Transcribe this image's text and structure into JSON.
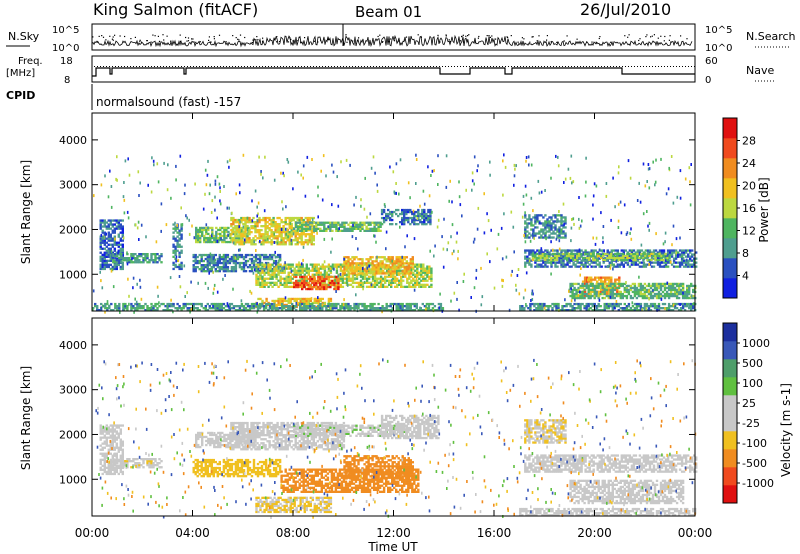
{
  "header": {
    "station": "King Salmon (fitACF)",
    "beam": "Beam 01",
    "date": "26/Jul/2010"
  },
  "top_panels": {
    "nsky_label": "N.Sky",
    "nsearch_label": "N.Search",
    "noise_ticks": [
      "10^5",
      "10^0"
    ],
    "freq_label_line1": "Freq.",
    "freq_label_line2": "[MHz]",
    "freq_ticks": [
      "18",
      "8"
    ],
    "nave_label": "Nave",
    "nave_ticks": [
      "60",
      "0"
    ],
    "cpid_label": "CPID",
    "cpid_value": "normalsound (fast) -157"
  },
  "colors": {
    "power_scale": [
      "#1020e0",
      "#2a50c0",
      "#4f9e8f",
      "#4fb560",
      "#bcd840",
      "#f0c020",
      "#f08c20",
      "#f04a1e",
      "#e01010"
    ],
    "velocity_scale": [
      "#1c2f9e",
      "#3958b8",
      "#4e9e6a",
      "#60c040",
      "#c8c8c8",
      "#c8c8c8",
      "#f0c020",
      "#f08c20",
      "#f04a1e",
      "#e01010"
    ]
  },
  "chart_data": [
    {
      "type": "heatmap",
      "name": "power",
      "ylabel": "Slant Range [km]",
      "yticks": [
        1000,
        2000,
        3000,
        4000
      ],
      "ylim": [
        180,
        4600
      ],
      "xlim": [
        0,
        24
      ],
      "colorbar_label": "Power [dB]",
      "colorbar_ticks": [
        4,
        8,
        12,
        16,
        20,
        24,
        28
      ],
      "colorbar_range": [
        0,
        32
      ],
      "echo_bands": [
        {
          "t": [
            0.3,
            1.2
          ],
          "r": [
            1100,
            2200
          ],
          "v": 6
        },
        {
          "t": [
            0.8,
            2.8
          ],
          "r": [
            1250,
            1450
          ],
          "v": 9
        },
        {
          "t": [
            3.2,
            3.6
          ],
          "r": [
            1100,
            2100
          ],
          "v": 8
        },
        {
          "t": [
            4.1,
            6.2
          ],
          "r": [
            1700,
            2050
          ],
          "v": 13
        },
        {
          "t": [
            5.5,
            8.8
          ],
          "r": [
            1650,
            2250
          ],
          "v": 18
        },
        {
          "t": [
            8.0,
            11.5
          ],
          "r": [
            1950,
            2150
          ],
          "v": 12
        },
        {
          "t": [
            4.0,
            7.5
          ],
          "r": [
            1050,
            1450
          ],
          "v": 8
        },
        {
          "t": [
            6.5,
            13.5
          ],
          "r": [
            700,
            1200
          ],
          "v": 16
        },
        {
          "t": [
            8.0,
            9.8
          ],
          "r": [
            650,
            950
          ],
          "v": 26
        },
        {
          "t": [
            10.0,
            12.8
          ],
          "r": [
            1000,
            1400
          ],
          "v": 20
        },
        {
          "t": [
            11.5,
            13.5
          ],
          "r": [
            2100,
            2450
          ],
          "v": 7
        },
        {
          "t": [
            6.5,
            9.5
          ],
          "r": [
            250,
            450
          ],
          "v": 20
        },
        {
          "t": [
            0.0,
            14.0
          ],
          "r": [
            180,
            320
          ],
          "v": 10
        },
        {
          "t": [
            17.2,
            24.0
          ],
          "r": [
            1150,
            1550
          ],
          "v": 7
        },
        {
          "t": [
            17.5,
            23.0
          ],
          "r": [
            1300,
            1450
          ],
          "v": 14
        },
        {
          "t": [
            19.5,
            21.0
          ],
          "r": [
            500,
            950
          ],
          "v": 22
        },
        {
          "t": [
            19.0,
            24.0
          ],
          "r": [
            450,
            800
          ],
          "v": 12
        },
        {
          "t": [
            17.0,
            24.0
          ],
          "r": [
            180,
            350
          ],
          "v": 9
        },
        {
          "t": [
            17.2,
            18.8
          ],
          "r": [
            1800,
            2300
          ],
          "v": 8
        }
      ]
    },
    {
      "type": "heatmap",
      "name": "velocity",
      "ylabel": "Slant Range [km]",
      "yticks": [
        1000,
        2000,
        3000,
        4000
      ],
      "ylim": [
        180,
        4600
      ],
      "xlim": [
        0,
        24
      ],
      "xlabel": "Time UT",
      "xticks": [
        "00:00",
        "04:00",
        "08:00",
        "12:00",
        "16:00",
        "20:00",
        "00:00"
      ],
      "colorbar_label": "Velocity [m s-1]",
      "colorbar_ticks": [
        "1000",
        "500",
        "100",
        "25",
        "-25",
        "-100",
        "-500",
        "-1000"
      ],
      "echo_bands": [
        {
          "t": [
            0.3,
            1.2
          ],
          "r": [
            1100,
            2200
          ],
          "v": 0
        },
        {
          "t": [
            4.1,
            6.5
          ],
          "r": [
            1700,
            2050
          ],
          "v": 0
        },
        {
          "t": [
            5.5,
            10.0
          ],
          "r": [
            1650,
            2250
          ],
          "v": 0
        },
        {
          "t": [
            8.0,
            12.5
          ],
          "r": [
            1950,
            2200
          ],
          "v": 10
        },
        {
          "t": [
            4.0,
            7.5
          ],
          "r": [
            1050,
            1450
          ],
          "v": -60
        },
        {
          "t": [
            7.5,
            13.0
          ],
          "r": [
            700,
            1200
          ],
          "v": -150
        },
        {
          "t": [
            10.0,
            12.8
          ],
          "r": [
            1000,
            1500
          ],
          "v": -220
        },
        {
          "t": [
            6.5,
            9.5
          ],
          "r": [
            250,
            600
          ],
          "v": -30
        },
        {
          "t": [
            11.5,
            13.8
          ],
          "r": [
            1900,
            2400
          ],
          "v": 5
        },
        {
          "t": [
            0.8,
            2.8
          ],
          "r": [
            1250,
            1450
          ],
          "v": -10
        },
        {
          "t": [
            17.2,
            24.0
          ],
          "r": [
            1150,
            1550
          ],
          "v": 0
        },
        {
          "t": [
            19.0,
            23.5
          ],
          "r": [
            450,
            950
          ],
          "v": -5
        },
        {
          "t": [
            17.0,
            24.0
          ],
          "r": [
            180,
            350
          ],
          "v": 0
        },
        {
          "t": [
            17.2,
            18.8
          ],
          "r": [
            1800,
            2300
          ],
          "v": -20
        }
      ]
    }
  ]
}
